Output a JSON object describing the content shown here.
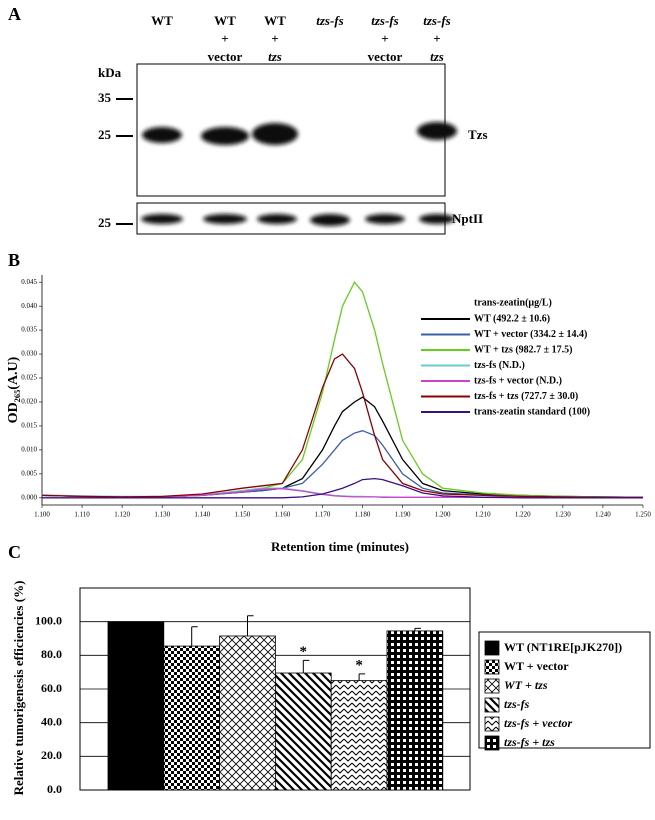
{
  "blot": {
    "panel_label": "A",
    "lanes": [
      [
        "WT"
      ],
      [
        "WT",
        "+",
        "vector"
      ],
      [
        "WT",
        "+",
        "tzs"
      ],
      [
        "tzs-fs"
      ],
      [
        "tzs-fs",
        "+",
        "vector"
      ],
      [
        "tzs-fs",
        "+",
        "tzs"
      ]
    ],
    "kda_label": "kDa",
    "top": {
      "markers": [
        "35",
        "25"
      ],
      "label": "Tzs"
    },
    "bottom": {
      "markers": [
        "25"
      ],
      "label": "NptII"
    }
  },
  "chart_data": [
    {
      "type": "line",
      "panel_label": "B",
      "ylabel": "OD₂₆₅(A.U)",
      "xlabel": "Retention time (minutes)",
      "legend_title": "trans-zeatin(μg/L)",
      "x": [
        1.1,
        1.11,
        1.12,
        1.13,
        1.14,
        1.15,
        1.155,
        1.16,
        1.165,
        1.17,
        1.173,
        1.175,
        1.178,
        1.18,
        1.183,
        1.185,
        1.19,
        1.195,
        1.2,
        1.21,
        1.22,
        1.23,
        1.24,
        1.25
      ],
      "series": [
        {
          "name": "WT (492.2 ± 10.6)",
          "color": "#000000",
          "values": [
            0.0005,
            0.0003,
            0.0002,
            0.0002,
            0.0005,
            0.0012,
            0.0015,
            0.002,
            0.004,
            0.01,
            0.015,
            0.018,
            0.02,
            0.021,
            0.019,
            0.016,
            0.008,
            0.003,
            0.0015,
            0.0008,
            0.0005,
            0.0003,
            0.0002,
            0.0001
          ]
        },
        {
          "name": "WT + vector (334.2 ± 14.4)",
          "color": "#3a5fa8",
          "values": [
            0.0005,
            0.0003,
            0.0002,
            0.0002,
            0.0005,
            0.0012,
            0.0015,
            0.002,
            0.003,
            0.007,
            0.01,
            0.012,
            0.0135,
            0.014,
            0.013,
            0.011,
            0.005,
            0.002,
            0.001,
            0.0006,
            0.0004,
            0.0002,
            0.0001,
            0.0001
          ]
        },
        {
          "name": "WT + tzs (982.7 ± 17.5)",
          "color": "#66cc22",
          "values": [
            0.0005,
            0.0003,
            0.0002,
            0.0002,
            0.0005,
            0.0015,
            0.002,
            0.003,
            0.008,
            0.022,
            0.033,
            0.04,
            0.045,
            0.043,
            0.035,
            0.028,
            0.012,
            0.005,
            0.002,
            0.001,
            0.0005,
            0.0003,
            0.0002,
            0.0001
          ]
        },
        {
          "name": "tzs-fs (N.D.)",
          "color": "#66cccc",
          "values": [
            0.0006,
            0.0004,
            0.0003,
            0.0003,
            0.0006,
            0.0015,
            0.002,
            0.002,
            0.0015,
            0.0008,
            0.0005,
            0.0004,
            0.0003,
            0.0003,
            0.0002,
            0.0002,
            0.0001,
            0.0001,
            0.0001,
            0.0001,
            0.0001,
            0.0001,
            0.0001,
            0.0001
          ]
        },
        {
          "name": "tzs-fs + vector (N.D.)",
          "color": "#cc44cc",
          "values": [
            0.0005,
            0.0003,
            0.0002,
            0.0002,
            0.0005,
            0.0013,
            0.0018,
            0.0019,
            0.0014,
            0.0007,
            0.0004,
            0.0003,
            0.0002,
            0.0002,
            0.0002,
            0.0001,
            0.0001,
            0.0001,
            0.0001,
            0.0001,
            0.0001,
            0.0001,
            0.0001,
            0.0001
          ]
        },
        {
          "name": "tzs-fs + tzs (727.7 ± 30.0)",
          "color": "#8b0000",
          "values": [
            0.0005,
            0.0003,
            0.0002,
            0.0003,
            0.0008,
            0.002,
            0.0025,
            0.003,
            0.01,
            0.023,
            0.029,
            0.03,
            0.027,
            0.022,
            0.013,
            0.008,
            0.003,
            0.0015,
            0.0008,
            0.0005,
            0.0003,
            0.0002,
            0.0001,
            0.0001
          ]
        },
        {
          "name": "trans-zeatin standard (100)",
          "color": "#3a1080",
          "values": [
            0,
            0,
            0,
            0,
            0,
            0,
            0,
            0,
            0.0002,
            0.0008,
            0.0015,
            0.002,
            0.003,
            0.0038,
            0.004,
            0.0038,
            0.0025,
            0.001,
            0.0004,
            0.0001,
            0,
            0,
            0,
            0
          ]
        }
      ],
      "xlim": [
        1.1,
        1.25
      ],
      "xticks": [
        {
          "value": 1.1,
          "label": "1.100"
        },
        {
          "value": 1.11,
          "label": "1.110"
        },
        {
          "value": 1.12,
          "label": "1.120"
        },
        {
          "value": 1.13,
          "label": "1.130"
        },
        {
          "value": 1.14,
          "label": "1.140"
        },
        {
          "value": 1.15,
          "label": "1.150"
        },
        {
          "value": 1.16,
          "label": "1.160"
        },
        {
          "value": 1.17,
          "label": "1.170"
        },
        {
          "value": 1.18,
          "label": "1.180"
        },
        {
          "value": 1.19,
          "label": "1.190"
        },
        {
          "value": 1.2,
          "label": "1.200"
        },
        {
          "value": 1.21,
          "label": "1.210"
        },
        {
          "value": 1.22,
          "label": "1.220"
        },
        {
          "value": 1.23,
          "label": "1.230"
        },
        {
          "value": 1.24,
          "label": "1.240"
        },
        {
          "value": 1.25,
          "label": "1.250"
        }
      ],
      "ylim": [
        -0.0015,
        0.0465
      ],
      "yticks": [
        {
          "value": 0,
          "label": "0.000"
        },
        {
          "value": 0.005,
          "label": "0.005"
        },
        {
          "value": 0.01,
          "label": "0.010"
        },
        {
          "value": 0.015,
          "label": "0.015"
        },
        {
          "value": 0.02,
          "label": "0.020"
        },
        {
          "value": 0.025,
          "label": "0.025"
        },
        {
          "value": 0.03,
          "label": "0.030"
        },
        {
          "value": 0.035,
          "label": "0.035"
        },
        {
          "value": 0.04,
          "label": "0.040"
        },
        {
          "value": 0.045,
          "label": "0.045"
        }
      ]
    },
    {
      "type": "bar",
      "panel_label": "C",
      "ylabel": "Relative tumorigenesis efficiencies (%)",
      "categories": [
        "WT (NT1RE[pJK270])",
        "WT + vector",
        "WT + tzs",
        "tzs-fs",
        "tzs-fs + vector",
        "tzs-fs + tzs"
      ],
      "values": [
        100,
        85.5,
        91.5,
        69.5,
        65,
        94.5
      ],
      "errors": [
        0,
        11.5,
        12,
        7.5,
        4,
        1.5
      ],
      "annotations": [
        null,
        null,
        null,
        "*",
        "*",
        null
      ],
      "patterns": [
        "solid",
        "checker",
        "diamond",
        "diagonal",
        "wave",
        "stripe"
      ],
      "ylim": [
        0,
        120
      ],
      "yticks": [
        {
          "value": 0,
          "label": "0.0"
        },
        {
          "value": 20,
          "label": "20.0"
        },
        {
          "value": 40,
          "label": "40.0"
        },
        {
          "value": 60,
          "label": "60.0"
        },
        {
          "value": 80,
          "label": "80.0"
        },
        {
          "value": 100,
          "label": "100.0"
        }
      ],
      "grid": true
    }
  ]
}
